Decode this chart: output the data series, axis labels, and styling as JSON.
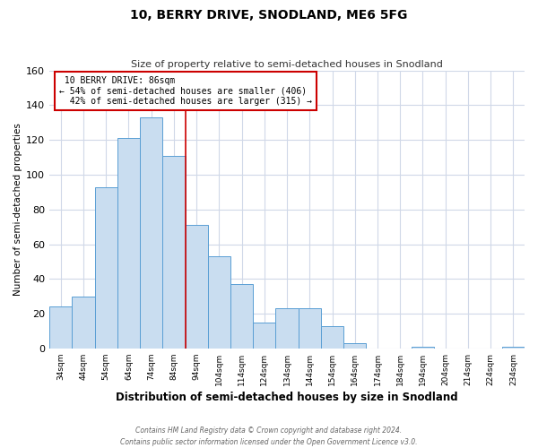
{
  "title": "10, BERRY DRIVE, SNODLAND, ME6 5FG",
  "subtitle": "Size of property relative to semi-detached houses in Snodland",
  "xlabel": "Distribution of semi-detached houses by size in Snodland",
  "ylabel": "Number of semi-detached properties",
  "bar_labels": [
    "34sqm",
    "44sqm",
    "54sqm",
    "64sqm",
    "74sqm",
    "84sqm",
    "94sqm",
    "104sqm",
    "114sqm",
    "124sqm",
    "134sqm",
    "144sqm",
    "154sqm",
    "164sqm",
    "174sqm",
    "184sqm",
    "194sqm",
    "204sqm",
    "214sqm",
    "224sqm",
    "234sqm"
  ],
  "bar_values": [
    24,
    30,
    93,
    121,
    133,
    111,
    71,
    53,
    37,
    15,
    23,
    23,
    13,
    3,
    0,
    0,
    1,
    0,
    0,
    0,
    1
  ],
  "bar_color": "#c9ddf0",
  "bar_edge_color": "#5a9fd4",
  "property_label": "10 BERRY DRIVE: 86sqm",
  "pct_smaller": 54,
  "count_smaller": 406,
  "pct_larger": 42,
  "count_larger": 315,
  "marker_bin_index": 5,
  "vline_color": "#cc0000",
  "annotation_box_color": "#cc0000",
  "ylim": [
    0,
    160
  ],
  "yticks": [
    0,
    20,
    40,
    60,
    80,
    100,
    120,
    140,
    160
  ],
  "footer_line1": "Contains HM Land Registry data © Crown copyright and database right 2024.",
  "footer_line2": "Contains public sector information licensed under the Open Government Licence v3.0.",
  "bg_color": "#ffffff",
  "grid_color": "#d0d8e8"
}
